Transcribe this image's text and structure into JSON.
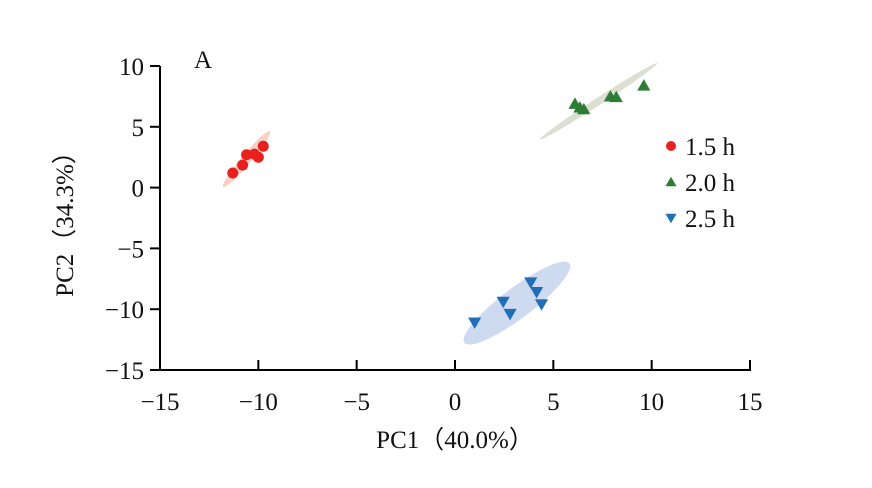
{
  "chart_data": {
    "type": "scatter",
    "panel_label": "A",
    "title": "",
    "xlabel": "PC1（40.0%）",
    "ylabel": "PC2（34.3%）",
    "xlim": [
      -15,
      15
    ],
    "ylim": [
      -15,
      10
    ],
    "xticks": [
      -15,
      -10,
      -5,
      0,
      5,
      10,
      15
    ],
    "yticks": [
      -15,
      -10,
      -5,
      0,
      5,
      10
    ],
    "xtick_labels": [
      "−15",
      "−10",
      "−5",
      "0",
      "5",
      "10",
      "15"
    ],
    "ytick_labels": [
      "−15",
      "−10",
      "−5",
      "0",
      "5",
      "10"
    ],
    "grid": false,
    "legend_position": "right",
    "series": [
      {
        "name": "1.5 h",
        "marker": "circle",
        "color": "#e8211f",
        "ellipse_color": "#f6c9b8",
        "ellipse": {
          "cx": -10.6,
          "cy": 2.35,
          "major": 1.85,
          "minor": 0.4,
          "angle_deg": 50
        },
        "points": [
          {
            "x": -11.3,
            "y": 1.2
          },
          {
            "x": -10.8,
            "y": 1.85
          },
          {
            "x": -10.6,
            "y": 2.7
          },
          {
            "x": -10.2,
            "y": 2.75
          },
          {
            "x": -10.0,
            "y": 2.5
          },
          {
            "x": -9.75,
            "y": 3.4
          }
        ]
      },
      {
        "name": "2.0 h",
        "marker": "triangle-up",
        "color": "#2e7d36",
        "ellipse_color": "#d3d9c9",
        "ellipse": {
          "cx": 7.3,
          "cy": 7.1,
          "major": 3.55,
          "minor": 0.3,
          "angle_deg": 33
        },
        "points": [
          {
            "x": 6.1,
            "y": 6.9
          },
          {
            "x": 6.35,
            "y": 6.6
          },
          {
            "x": 6.55,
            "y": 6.45
          },
          {
            "x": 7.9,
            "y": 7.5
          },
          {
            "x": 8.2,
            "y": 7.45
          },
          {
            "x": 9.6,
            "y": 8.4
          }
        ]
      },
      {
        "name": "2.5 h",
        "marker": "triangle-down",
        "color": "#1f6fb8",
        "ellipse_color": "#c5d3ec",
        "ellipse": {
          "cx": 3.15,
          "cy": -9.5,
          "major": 3.35,
          "minor": 1.25,
          "angle_deg": 37
        },
        "points": [
          {
            "x": 1.0,
            "y": -11.1
          },
          {
            "x": 2.45,
            "y": -9.4
          },
          {
            "x": 2.8,
            "y": -10.4
          },
          {
            "x": 3.85,
            "y": -7.8
          },
          {
            "x": 4.15,
            "y": -8.6
          },
          {
            "x": 4.4,
            "y": -9.6
          }
        ]
      }
    ]
  }
}
